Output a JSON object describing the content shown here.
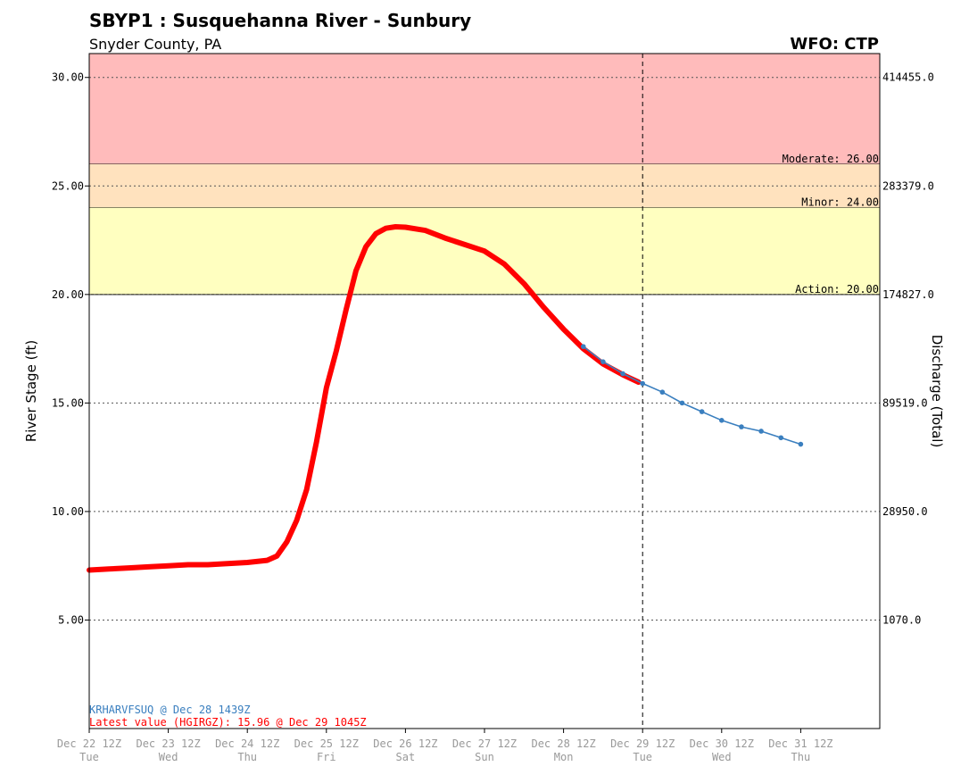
{
  "header": {
    "title": "SBYP1 : Susquehanna River - Sunbury",
    "subtitle": "Snyder County, PA",
    "office": "WFO: CTP"
  },
  "chart_data": {
    "type": "line",
    "ylabel": "River Stage (ft)",
    "y2label": "Discharge (Total)",
    "ylim": [
      0,
      31.1
    ],
    "xlim": [
      "2024-12-22T12:00Z",
      "2025-01-01T12:00Z"
    ],
    "grid": true,
    "y_ticks": [
      5,
      10,
      15,
      20,
      25,
      30
    ],
    "y_tick_labels": [
      "5.00",
      "10.00",
      "15.00",
      "20.00",
      "25.00",
      "30.00"
    ],
    "y2_tick_labels": [
      "1070.0",
      "28950.0",
      "89519.0",
      "174827.0",
      "283379.0",
      "414455.0"
    ],
    "x_ticks": [
      {
        "date": "Dec 22 12Z",
        "day": "Tue"
      },
      {
        "date": "Dec 23 12Z",
        "day": "Wed"
      },
      {
        "date": "Dec 24 12Z",
        "day": "Thu"
      },
      {
        "date": "Dec 25 12Z",
        "day": "Fri"
      },
      {
        "date": "Dec 26 12Z",
        "day": "Sat"
      },
      {
        "date": "Dec 27 12Z",
        "day": "Sun"
      },
      {
        "date": "Dec 28 12Z",
        "day": "Mon"
      },
      {
        "date": "Dec 29 12Z",
        "day": "Tue"
      },
      {
        "date": "Dec 30 12Z",
        "day": "Wed"
      },
      {
        "date": "Dec 31 12Z",
        "day": "Thu"
      }
    ],
    "flood_categories": [
      {
        "label": "Moderate: 26.00",
        "low": 26,
        "high": 31.1,
        "color": "#ffbbbb"
      },
      {
        "label": "Minor: 24.00",
        "low": 24,
        "high": 26,
        "color": "#ffe2be"
      },
      {
        "label": "Action: 20.00",
        "low": 20,
        "high": 24,
        "color": "#ffffc0"
      }
    ],
    "current_time": "2024-12-29T12:00Z",
    "series": [
      {
        "kind": "observed",
        "color": "#ff0000",
        "points": [
          [
            "2024-12-22T12:00Z",
            7.3
          ],
          [
            "2024-12-22T18:00Z",
            7.35
          ],
          [
            "2024-12-23T00:00Z",
            7.4
          ],
          [
            "2024-12-23T06:00Z",
            7.45
          ],
          [
            "2024-12-23T12:00Z",
            7.5
          ],
          [
            "2024-12-23T18:00Z",
            7.55
          ],
          [
            "2024-12-24T00:00Z",
            7.55
          ],
          [
            "2024-12-24T06:00Z",
            7.6
          ],
          [
            "2024-12-24T12:00Z",
            7.65
          ],
          [
            "2024-12-24T18:00Z",
            7.75
          ],
          [
            "2024-12-24T21:00Z",
            7.95
          ],
          [
            "2024-12-25T00:00Z",
            8.6
          ],
          [
            "2024-12-25T03:00Z",
            9.6
          ],
          [
            "2024-12-25T06:00Z",
            11.0
          ],
          [
            "2024-12-25T09:00Z",
            13.2
          ],
          [
            "2024-12-25T12:00Z",
            15.7
          ],
          [
            "2024-12-25T15:00Z",
            17.4
          ],
          [
            "2024-12-25T18:00Z",
            19.3
          ],
          [
            "2024-12-25T21:00Z",
            21.1
          ],
          [
            "2024-12-26T00:00Z",
            22.2
          ],
          [
            "2024-12-26T03:00Z",
            22.8
          ],
          [
            "2024-12-26T06:00Z",
            23.05
          ],
          [
            "2024-12-26T09:00Z",
            23.12
          ],
          [
            "2024-12-26T12:00Z",
            23.1
          ],
          [
            "2024-12-26T18:00Z",
            22.95
          ],
          [
            "2024-12-27T00:00Z",
            22.6
          ],
          [
            "2024-12-27T06:00Z",
            22.3
          ],
          [
            "2024-12-27T12:00Z",
            22.0
          ],
          [
            "2024-12-27T18:00Z",
            21.4
          ],
          [
            "2024-12-28T00:00Z",
            20.5
          ],
          [
            "2024-12-28T06:00Z",
            19.4
          ],
          [
            "2024-12-28T12:00Z",
            18.4
          ],
          [
            "2024-12-28T18:00Z",
            17.5
          ],
          [
            "2024-12-29T00:00Z",
            16.8
          ],
          [
            "2024-12-29T06:00Z",
            16.3
          ],
          [
            "2024-12-29T10:45Z",
            15.96
          ]
        ]
      },
      {
        "kind": "forecast",
        "color": "#3a7fbf",
        "points": [
          [
            "2024-12-28T18:00Z",
            17.6
          ],
          [
            "2024-12-29T00:00Z",
            16.9
          ],
          [
            "2024-12-29T06:00Z",
            16.35
          ],
          [
            "2024-12-29T12:00Z",
            15.9
          ],
          [
            "2024-12-29T18:00Z",
            15.5
          ],
          [
            "2024-12-30T00:00Z",
            15.0
          ],
          [
            "2024-12-30T06:00Z",
            14.6
          ],
          [
            "2024-12-30T12:00Z",
            14.2
          ],
          [
            "2024-12-30T18:00Z",
            13.9
          ],
          [
            "2024-12-31T00:00Z",
            13.7
          ],
          [
            "2024-12-31T06:00Z",
            13.4
          ],
          [
            "2024-12-31T12:00Z",
            13.1
          ]
        ]
      }
    ],
    "annotations": {
      "forecast_source": "KRHARVFSUQ @ Dec 28 1439Z",
      "latest_value": "Latest value (HGIRGZ): 15.96 @ Dec 29 1045Z"
    }
  }
}
